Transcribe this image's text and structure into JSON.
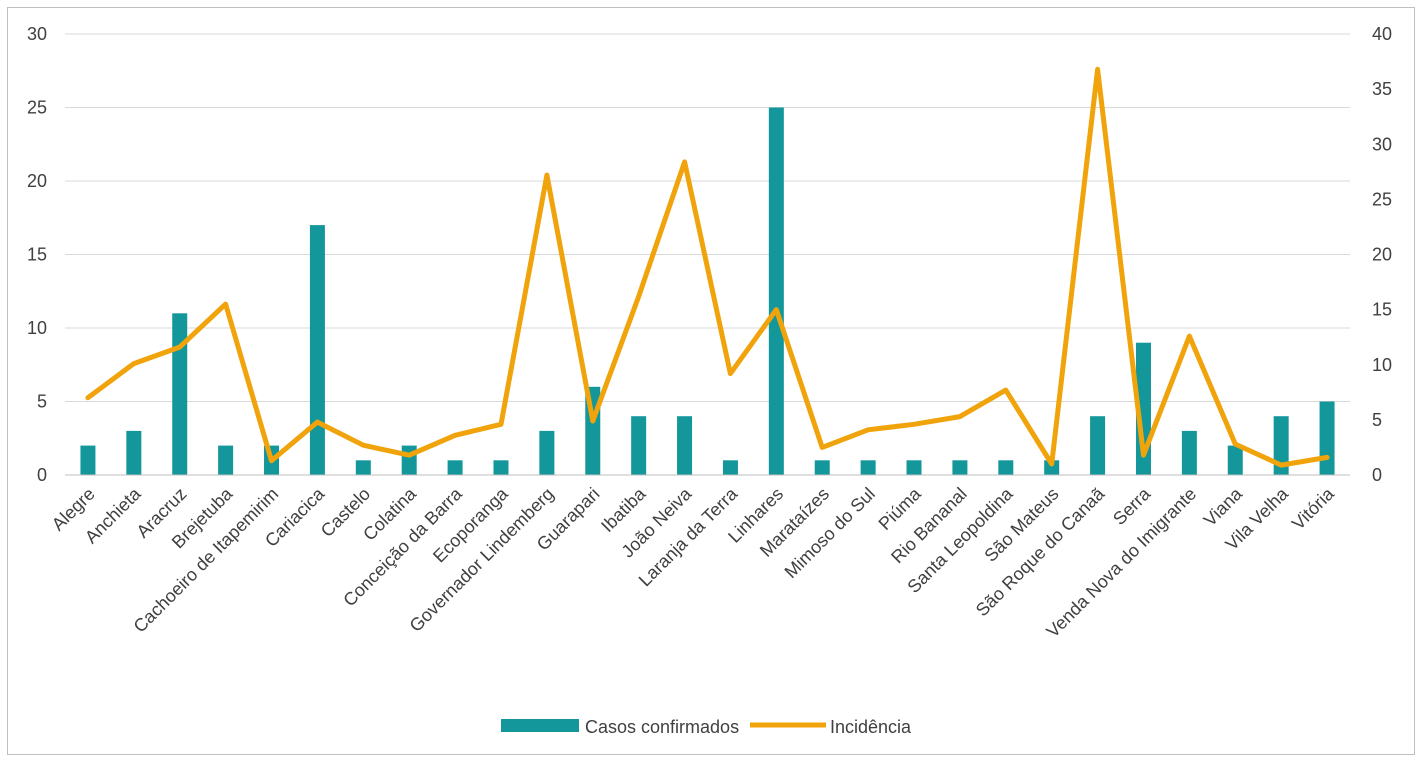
{
  "chart_data": {
    "type": "bar",
    "categories": [
      "Alegre",
      "Anchieta",
      "Aracruz",
      "Brejetuba",
      "Cachoeiro de Itapemirim",
      "Cariacica",
      "Castelo",
      "Colatina",
      "Conceição da Barra",
      "Ecoporanga",
      "Governador Lindemberg",
      "Guarapari",
      "Ibatiba",
      "João Neiva",
      "Laranja da Terra",
      "Linhares",
      "Marataízes",
      "Mimoso do Sul",
      "Piúma",
      "Rio Bananal",
      "Santa Leopoldina",
      "São Mateus",
      "São Roque do Canaã",
      "Serra",
      "Venda Nova do Imigrante",
      "Viana",
      "Vila Velha",
      "Vitória"
    ],
    "series": [
      {
        "name": "Casos confirmados",
        "type": "bar",
        "axis": "left",
        "color": "#13979a",
        "values": [
          2,
          3,
          11,
          2,
          2,
          17,
          1,
          2,
          1,
          1,
          3,
          6,
          4,
          4,
          1,
          25,
          1,
          1,
          1,
          1,
          1,
          1,
          4,
          9,
          3,
          2,
          4,
          5
        ]
      },
      {
        "name": "Incidência",
        "type": "line",
        "axis": "right",
        "color": "#f0a30a",
        "values": [
          7.0,
          10.1,
          11.6,
          15.5,
          1.3,
          4.8,
          2.7,
          1.8,
          3.6,
          4.6,
          27.2,
          4.9,
          16.2,
          28.4,
          9.2,
          15.0,
          2.5,
          4.1,
          4.6,
          5.3,
          7.7,
          1.0,
          36.8,
          1.8,
          12.6,
          2.8,
          0.9,
          1.6
        ]
      }
    ],
    "y_left": {
      "min": 0,
      "max": 30,
      "ticks": [
        0,
        5,
        10,
        15,
        20,
        25,
        30
      ]
    },
    "y_right": {
      "min": 0,
      "max": 40,
      "ticks": [
        0,
        5,
        10,
        15,
        20,
        25,
        30,
        35,
        40
      ]
    },
    "grid": true,
    "legend_position": "bottom",
    "title": "",
    "xlabel": "",
    "ylabel": ""
  }
}
